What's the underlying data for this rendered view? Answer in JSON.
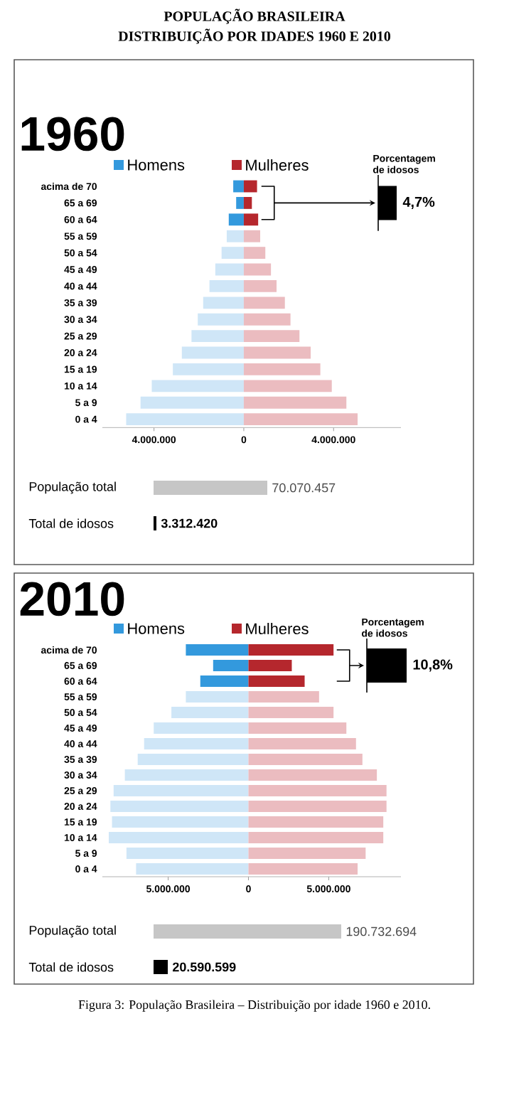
{
  "chart_data": [
    {
      "type": "bar",
      "orientation": "horizontal",
      "title": "POPULAÇÃO BRASILEIRA",
      "subtitle": "DISTRIBUIÇÃO POR IDADES 1960 E 2010",
      "legend": "top",
      "categories": [
        "acima de 70",
        "65 a 69",
        "60 a 64",
        "55 a 59",
        "50 a 54",
        "45 a 49",
        "40 a 44",
        "35 a 39",
        "30 a 34",
        "25 a 29",
        "20 a 24",
        "15 a 19",
        "10 a 14",
        "5 a 9",
        "0 a 4"
      ],
      "series": [
        {
          "name": "Homens",
          "color": "#3399dd",
          "colors": [
            "#3399dd",
            "#3399dd",
            "#3399dd",
            "#cfe6f7",
            "#cfe6f7",
            "#cfe6f7",
            "#cfe6f7",
            "#cfe6f7",
            "#cfe6f7",
            "#cfe6f7",
            "#cfe6f7",
            "#cfe6f7",
            "#cfe6f7",
            "#cfe6f7",
            "#cfe6f7"
          ],
          "values": [
            -470000,
            -340000,
            -670000,
            -760000,
            -990000,
            -1270000,
            -1530000,
            -1810000,
            -2050000,
            -2330000,
            -2760000,
            -3160000,
            -4100000,
            -4600000,
            -5240000
          ]
        },
        {
          "name": "Mulheres",
          "color": "#b5272d",
          "colors": [
            "#b5272d",
            "#b5272d",
            "#b5272d",
            "#ebbcc0",
            "#ebbcc0",
            "#ebbcc0",
            "#ebbcc0",
            "#ebbcc0",
            "#ebbcc0",
            "#ebbcc0",
            "#ebbcc0",
            "#ebbcc0",
            "#ebbcc0",
            "#ebbcc0",
            "#ebbcc0"
          ],
          "values": [
            590000,
            360000,
            640000,
            730000,
            960000,
            1210000,
            1460000,
            1830000,
            2080000,
            2480000,
            2980000,
            3410000,
            3920000,
            4570000,
            5070000
          ]
        }
      ],
      "xlim": [
        -6300000,
        7000000
      ],
      "xticks": [
        {
          "value": -4000000,
          "label": "4.000.000"
        },
        0,
        {
          "value": 4000000,
          "label": "4.000.000"
        }
      ],
      "stacked": true,
      "annotations": [
        "1960",
        "Porcentagem de idosos",
        "4,7%",
        "População total",
        "70.070.457",
        "Total de idosos",
        "3.312.420"
      ]
    },
    {
      "type": "bar",
      "orientation": "horizontal",
      "legend": "top",
      "categories": [
        "acima de 70",
        "65 a 69",
        "60 a 64",
        "55 a 59",
        "50 a 54",
        "45 a 49",
        "40 a 44",
        "35 a 39",
        "30 a 34",
        "25 a 29",
        "20 a 24",
        "15 a 19",
        "10 a 14",
        "5 a 9",
        "0 a 4"
      ],
      "series": [
        {
          "name": "Homens",
          "color": "#3399dd",
          "colors": [
            "#3399dd",
            "#3399dd",
            "#3399dd",
            "#cfe6f7",
            "#cfe6f7",
            "#cfe6f7",
            "#cfe6f7",
            "#cfe6f7",
            "#cfe6f7",
            "#cfe6f7",
            "#cfe6f7",
            "#cfe6f7",
            "#cfe6f7",
            "#cfe6f7",
            "#cfe6f7"
          ],
          "values": [
            -3900000,
            -2200000,
            -3000000,
            -3900000,
            -4800000,
            -5900000,
            -6500000,
            -6900000,
            -7700000,
            -8400000,
            -8600000,
            -8500000,
            -8700000,
            -7600000,
            -7000000
          ]
        },
        {
          "name": "Mulheres",
          "color": "#b5272d",
          "colors": [
            "#b5272d",
            "#b5272d",
            "#b5272d",
            "#ebbcc0",
            "#ebbcc0",
            "#ebbcc0",
            "#ebbcc0",
            "#ebbcc0",
            "#ebbcc0",
            "#ebbcc0",
            "#ebbcc0",
            "#ebbcc0",
            "#ebbcc0",
            "#ebbcc0",
            "#ebbcc0"
          ],
          "values": [
            5300000,
            2700000,
            3500000,
            4400000,
            5300000,
            6100000,
            6700000,
            7100000,
            8000000,
            8600000,
            8600000,
            8400000,
            8400000,
            7300000,
            6800000
          ]
        }
      ],
      "xlim": [
        -9100000,
        9500000
      ],
      "xticks": [
        {
          "value": -5000000,
          "label": "5.000.000"
        },
        0,
        {
          "value": 5000000,
          "label": "5.000.000"
        }
      ],
      "stacked": true,
      "annotations": [
        "2010",
        "Porcentagem de idosos",
        "10,8%",
        "População total",
        "190.732.694",
        "Total de idosos",
        "20.590.599",
        "Figura 3: População Brasileira – Distribuição por idade 1960 e 2010."
      ]
    }
  ]
}
